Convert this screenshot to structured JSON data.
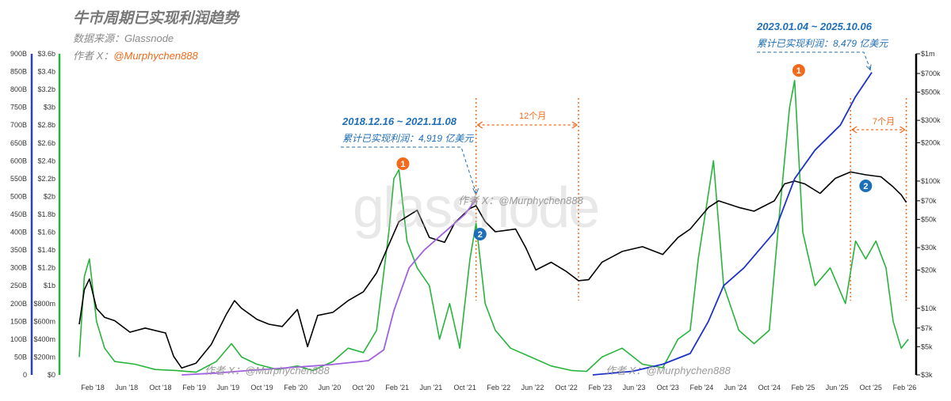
{
  "title": "牛市周期已实现利润趋势",
  "source": "数据来源：Glassnode",
  "author_prefix": "作者 X：",
  "author_handle": "@Murphychen888",
  "watermark": "glassnode",
  "inline_watermark": "作者 X：@Murphychen888",
  "colors": {
    "price": "#000000",
    "realized_profit": "#28b43c",
    "cumulative_2018": "#a060e0",
    "cumulative_2023": "#1e32c8",
    "annotation": "#1f6fb8",
    "marker_orange": "#f26a1b",
    "marker_blue": "#1f6fb8",
    "left_axis": "#2b3fbf",
    "green_axis": "#28b43c"
  },
  "annotations": {
    "cycle_2018": {
      "range": "2018.12.16 ~ 2021.11.08",
      "total": "累计已实现利润：4,919 亿美元"
    },
    "cycle_2023": {
      "range": "2023.01.04 ~ 2025.10.06",
      "total": "累计已实现利润：8,479 亿美元"
    },
    "gap_2021": "12个月",
    "gap_2025": "7个月",
    "marker1": "1",
    "marker2": "2"
  },
  "chart_data": {
    "type": "line",
    "x_ticks": [
      "Feb '18",
      "Jun '18",
      "Oct '18",
      "Feb '19",
      "Jun '19",
      "Oct '19",
      "Feb '20",
      "Jun '20",
      "Oct '20",
      "Feb '21",
      "Jun '21",
      "Oct '21",
      "Feb '22",
      "Jun '22",
      "Oct '22",
      "Feb '23",
      "Jun '23",
      "Oct '23",
      "Feb '24",
      "Jun '24",
      "Oct '24",
      "Feb '25",
      "Jun '25",
      "Oct '25",
      "Feb '26"
    ],
    "left_axis_ticks": [
      "0",
      "50B",
      "100B",
      "150B",
      "200B",
      "250B",
      "300B",
      "350B",
      "400B",
      "450B",
      "500B",
      "550B",
      "600B",
      "650B",
      "700B",
      "750B",
      "800B",
      "850B",
      "900B"
    ],
    "left_axis_range": [
      0,
      900
    ],
    "green_axis_ticks": [
      "$0",
      "$200m",
      "$400m",
      "$600m",
      "$800m",
      "$1b",
      "$1.2b",
      "$1.4b",
      "$1.6b",
      "$1.8b",
      "$2b",
      "$2.2b",
      "$2.4b",
      "$2.6b",
      "$2.8b",
      "$3b",
      "$3.2b",
      "$3.4b",
      "$3.6b"
    ],
    "green_axis_range": [
      0,
      3.6
    ],
    "right_axis_ticks": [
      "$3k",
      "$5k",
      "$7k",
      "$10k",
      "$20k",
      "$30k",
      "$50k",
      "$70k",
      "$100k",
      "$200k",
      "$300k",
      "$500k",
      "$700k",
      "$1m"
    ],
    "right_axis_scale": "log",
    "right_axis_range": [
      3000,
      1000000
    ],
    "series": [
      {
        "role": "price",
        "axis": "right",
        "points": [
          [
            2017.95,
            7500
          ],
          [
            2018.0,
            14000
          ],
          [
            2018.05,
            17000
          ],
          [
            2018.12,
            10000
          ],
          [
            2018.2,
            8500
          ],
          [
            2018.3,
            8000
          ],
          [
            2018.45,
            6500
          ],
          [
            2018.6,
            7000
          ],
          [
            2018.8,
            6400
          ],
          [
            2018.88,
            4200
          ],
          [
            2018.96,
            3400
          ],
          [
            2019.1,
            3700
          ],
          [
            2019.25,
            5200
          ],
          [
            2019.4,
            9000
          ],
          [
            2019.48,
            11500
          ],
          [
            2019.55,
            10000
          ],
          [
            2019.7,
            8200
          ],
          [
            2019.82,
            7500
          ],
          [
            2019.95,
            7200
          ],
          [
            2020.1,
            9800
          ],
          [
            2020.2,
            5000
          ],
          [
            2020.3,
            8800
          ],
          [
            2020.45,
            9300
          ],
          [
            2020.6,
            11500
          ],
          [
            2020.75,
            13500
          ],
          [
            2020.88,
            19000
          ],
          [
            2020.98,
            29000
          ],
          [
            2021.1,
            48000
          ],
          [
            2021.28,
            59000
          ],
          [
            2021.4,
            36000
          ],
          [
            2021.55,
            33000
          ],
          [
            2021.65,
            47000
          ],
          [
            2021.8,
            61000
          ],
          [
            2021.86,
            64000
          ],
          [
            2021.95,
            48000
          ],
          [
            2022.05,
            40000
          ],
          [
            2022.25,
            42000
          ],
          [
            2022.35,
            30000
          ],
          [
            2022.45,
            20000
          ],
          [
            2022.6,
            23000
          ],
          [
            2022.75,
            19500
          ],
          [
            2022.87,
            16500
          ],
          [
            2022.97,
            16800
          ],
          [
            2023.1,
            23000
          ],
          [
            2023.3,
            28000
          ],
          [
            2023.5,
            30500
          ],
          [
            2023.7,
            26500
          ],
          [
            2023.85,
            36000
          ],
          [
            2023.97,
            42000
          ],
          [
            2024.15,
            62000
          ],
          [
            2024.25,
            70000
          ],
          [
            2024.45,
            62000
          ],
          [
            2024.6,
            58000
          ],
          [
            2024.8,
            70000
          ],
          [
            2024.9,
            95000
          ],
          [
            2025.0,
            100000
          ],
          [
            2025.1,
            95000
          ],
          [
            2025.25,
            80000
          ],
          [
            2025.4,
            105000
          ],
          [
            2025.55,
            118000
          ],
          [
            2025.7,
            112000
          ],
          [
            2025.85,
            108000
          ],
          [
            2025.97,
            90000
          ],
          [
            2026.05,
            78000
          ],
          [
            2026.1,
            68000
          ]
        ]
      },
      {
        "role": "realized_profit",
        "axis": "green",
        "points": [
          [
            2017.95,
            0.2
          ],
          [
            2018.0,
            1.1
          ],
          [
            2018.05,
            1.3
          ],
          [
            2018.12,
            0.6
          ],
          [
            2018.2,
            0.3
          ],
          [
            2018.3,
            0.15
          ],
          [
            2018.5,
            0.12
          ],
          [
            2018.7,
            0.06
          ],
          [
            2018.9,
            0.05
          ],
          [
            2019.1,
            0.03
          ],
          [
            2019.3,
            0.15
          ],
          [
            2019.45,
            0.35
          ],
          [
            2019.55,
            0.2
          ],
          [
            2019.7,
            0.12
          ],
          [
            2019.9,
            0.06
          ],
          [
            2020.1,
            0.1
          ],
          [
            2020.25,
            0.05
          ],
          [
            2020.45,
            0.15
          ],
          [
            2020.6,
            0.3
          ],
          [
            2020.75,
            0.25
          ],
          [
            2020.88,
            0.5
          ],
          [
            2021.0,
            1.6
          ],
          [
            2021.05,
            2.2
          ],
          [
            2021.1,
            2.3
          ],
          [
            2021.18,
            1.5
          ],
          [
            2021.28,
            1.2
          ],
          [
            2021.4,
            1.0
          ],
          [
            2021.5,
            0.4
          ],
          [
            2021.6,
            0.8
          ],
          [
            2021.7,
            0.3
          ],
          [
            2021.8,
            1.3
          ],
          [
            2021.86,
            1.7
          ],
          [
            2021.95,
            0.8
          ],
          [
            2022.05,
            0.5
          ],
          [
            2022.2,
            0.3
          ],
          [
            2022.4,
            0.2
          ],
          [
            2022.6,
            0.1
          ],
          [
            2022.8,
            0.05
          ],
          [
            2022.95,
            0.04
          ],
          [
            2023.1,
            0.2
          ],
          [
            2023.3,
            0.3
          ],
          [
            2023.5,
            0.12
          ],
          [
            2023.7,
            0.08
          ],
          [
            2023.85,
            0.4
          ],
          [
            2023.97,
            0.5
          ],
          [
            2024.05,
            1.3
          ],
          [
            2024.2,
            2.4
          ],
          [
            2024.3,
            1.0
          ],
          [
            2024.45,
            0.5
          ],
          [
            2024.6,
            0.35
          ],
          [
            2024.75,
            0.5
          ],
          [
            2024.85,
            1.8
          ],
          [
            2024.95,
            3.0
          ],
          [
            2025.0,
            3.3
          ],
          [
            2025.08,
            1.6
          ],
          [
            2025.2,
            1.0
          ],
          [
            2025.35,
            1.2
          ],
          [
            2025.5,
            0.8
          ],
          [
            2025.6,
            1.5
          ],
          [
            2025.7,
            1.3
          ],
          [
            2025.8,
            1.5
          ],
          [
            2025.9,
            1.2
          ],
          [
            2025.97,
            0.6
          ],
          [
            2026.05,
            0.3
          ],
          [
            2026.12,
            0.4
          ]
        ]
      },
      {
        "role": "cumulative_2018",
        "axis": "left",
        "points": [
          [
            2018.96,
            0
          ],
          [
            2019.3,
            5
          ],
          [
            2019.6,
            12
          ],
          [
            2020.0,
            20
          ],
          [
            2020.4,
            28
          ],
          [
            2020.8,
            40
          ],
          [
            2020.95,
            70
          ],
          [
            2021.05,
            180
          ],
          [
            2021.2,
            300
          ],
          [
            2021.35,
            350
          ],
          [
            2021.55,
            400
          ],
          [
            2021.75,
            450
          ],
          [
            2021.86,
            492
          ]
        ]
      },
      {
        "role": "cumulative_2023",
        "axis": "left",
        "points": [
          [
            2023.01,
            0
          ],
          [
            2023.4,
            10
          ],
          [
            2023.7,
            30
          ],
          [
            2023.97,
            60
          ],
          [
            2024.15,
            150
          ],
          [
            2024.3,
            250
          ],
          [
            2024.5,
            300
          ],
          [
            2024.8,
            400
          ],
          [
            2025.0,
            550
          ],
          [
            2025.2,
            630
          ],
          [
            2025.45,
            700
          ],
          [
            2025.6,
            780
          ],
          [
            2025.76,
            848
          ]
        ]
      }
    ]
  }
}
